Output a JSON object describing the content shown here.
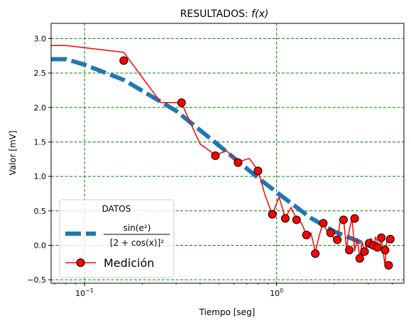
{
  "chart_data": {
    "type": "line",
    "title": "RESULTADOS: ",
    "title_math": "f(x)",
    "xlabel": "Tiempo [seg]",
    "ylabel": "Valor [mV]",
    "xscale": "log",
    "xlim": [
      0.067,
      4.6
    ],
    "ylim": [
      -0.55,
      3.22
    ],
    "x_ticks": [
      {
        "value": 0.1,
        "base": "10",
        "exp": "−1"
      },
      {
        "value": 1,
        "base": "10",
        "exp": "0"
      }
    ],
    "y_ticks": [
      -0.5,
      0.0,
      0.5,
      1.0,
      1.5,
      2.0,
      2.5,
      3.0
    ],
    "y_tick_labels": [
      "−0.5",
      "0.0",
      "0.5",
      "1.0",
      "1.5",
      "2.0",
      "2.5",
      "3.0"
    ],
    "grid": true,
    "grid_color": "#008000",
    "legend": {
      "title": "DATOS",
      "placement": "lower-left",
      "entries": [
        {
          "label_num": "sin(e²)",
          "label_den": "[2 + cos(x)]²"
        },
        {
          "label": "Medición"
        }
      ]
    },
    "series": [
      {
        "key": "model",
        "style": "dashed",
        "color": "#1f77b4",
        "x": [
          0.067,
          0.08,
          0.1,
          0.16,
          0.3,
          0.5,
          0.8,
          1.0,
          1.5,
          2.0,
          3.0,
          3.4
        ],
        "y": [
          2.7,
          2.7,
          2.62,
          2.4,
          1.95,
          1.45,
          0.98,
          0.77,
          0.4,
          0.2,
          0.0,
          -0.05
        ]
      },
      {
        "key": "measurement_line",
        "style": "solid",
        "color": "#ff0000",
        "x": [
          0.067,
          0.08,
          0.16,
          0.25,
          0.32,
          0.35,
          0.4,
          0.48,
          0.55,
          0.63,
          0.72,
          0.8,
          0.87,
          0.95,
          1.03,
          1.11,
          1.19,
          1.27,
          1.35,
          1.43,
          1.51,
          1.59,
          1.67,
          1.75,
          1.83,
          1.91,
          2.0,
          2.07,
          2.15,
          2.23,
          2.31,
          2.39,
          2.47,
          2.55,
          2.63,
          2.71,
          2.79,
          2.87,
          2.95,
          3.03,
          3.11,
          3.19,
          3.27,
          3.35,
          3.43,
          3.51,
          3.59,
          3.67,
          3.75,
          3.83,
          3.91
        ],
        "y": [
          2.9,
          2.9,
          2.8,
          2.07,
          2.07,
          1.82,
          1.47,
          1.31,
          1.37,
          1.21,
          1.26,
          1.09,
          0.73,
          0.45,
          0.7,
          0.4,
          0.55,
          0.38,
          0.32,
          0.15,
          0.18,
          -0.1,
          0.15,
          0.33,
          0.2,
          0.18,
          0.08,
          0.05,
          0.38,
          0.4,
          -0.05,
          0.22,
          0.4,
          -0.08,
          0.1,
          -0.18,
          0.05,
          -0.1,
          0.0,
          0.05,
          0.1,
          -0.05,
          0.12,
          0.05,
          -0.05,
          0.1,
          -0.1,
          -0.3,
          0.1,
          0.08,
          0.05
        ]
      },
      {
        "key": "measurement_markers",
        "style": "markers",
        "color": "#ff0000",
        "x": [
          0.16,
          0.32,
          0.48,
          0.63,
          0.8,
          0.95,
          1.11,
          1.27,
          1.43,
          1.59,
          1.75,
          1.91,
          2.07,
          2.23,
          2.39,
          2.55,
          2.71,
          2.87,
          3.03,
          3.19,
          3.35,
          3.51,
          3.67,
          3.83,
          3.91
        ],
        "y": [
          2.68,
          2.07,
          1.3,
          1.2,
          1.08,
          0.45,
          0.39,
          0.37,
          0.15,
          -0.12,
          0.32,
          0.18,
          0.08,
          0.37,
          -0.07,
          0.39,
          -0.19,
          -0.09,
          0.03,
          0.0,
          -0.03,
          0.11,
          -0.07,
          -0.29,
          0.09
        ]
      }
    ]
  }
}
